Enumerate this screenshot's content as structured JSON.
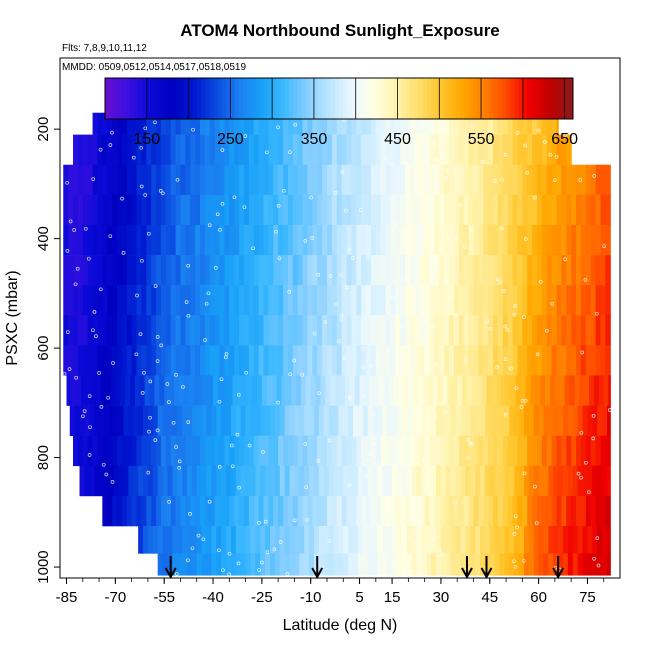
{
  "chart_data": {
    "type": "heatmap",
    "title": "ATOM4 Northbound Sunlight_Exposure",
    "subtitle_flights": "Flts: 7,8,9,10,11,12",
    "subtitle_dates": "MMDD: 0509,0512,0514,0517,0518,0519",
    "xlabel": "Latitude (deg N)",
    "ylabel": "PSXC (mbar)",
    "xlim": [
      -87,
      85
    ],
    "ylim": [
      1020,
      70
    ],
    "x_ticks": [
      -85,
      -70,
      -55,
      -40,
      -25,
      -10,
      5,
      15,
      30,
      45,
      60,
      75
    ],
    "y_ticks": [
      200,
      400,
      600,
      800,
      1000
    ],
    "colorbar": {
      "range": [
        100,
        660
      ],
      "ticks": [
        150,
        250,
        350,
        450,
        550,
        650
      ],
      "colors": [
        "#6a0dd1",
        "#3a10e0",
        "#0a0ad8",
        "#0000c0",
        "#0018d0",
        "#0a4ae0",
        "#1a7ef0",
        "#18a0f8",
        "#3cb8ff",
        "#80ccff",
        "#b8e4ff",
        "#e6f6ff",
        "#ffffe6",
        "#fff4b0",
        "#ffe070",
        "#ffc830",
        "#ffa800",
        "#ff8000",
        "#ff4a00",
        "#f00000",
        "#c00000",
        "#8a1a1a"
      ]
    },
    "arrow_latitudes": [
      -53,
      -8,
      38,
      44,
      66
    ],
    "pressure_bands": [
      {
        "p_top": 170,
        "p_bottom": 210,
        "lat_min": -77,
        "lat_max": 66
      },
      {
        "p_top": 210,
        "p_bottom": 265,
        "lat_min": -83,
        "lat_max": 70
      },
      {
        "p_top": 265,
        "p_bottom": 320,
        "lat_min": -86,
        "lat_max": 82
      },
      {
        "p_top": 320,
        "p_bottom": 375,
        "lat_min": -86,
        "lat_max": 82
      },
      {
        "p_top": 375,
        "p_bottom": 430,
        "lat_min": -86,
        "lat_max": 82
      },
      {
        "p_top": 430,
        "p_bottom": 485,
        "lat_min": -86,
        "lat_max": 82
      },
      {
        "p_top": 485,
        "p_bottom": 540,
        "lat_min": -86,
        "lat_max": 82
      },
      {
        "p_top": 540,
        "p_bottom": 595,
        "lat_min": -86,
        "lat_max": 82
      },
      {
        "p_top": 595,
        "p_bottom": 650,
        "lat_min": -86,
        "lat_max": 82
      },
      {
        "p_top": 650,
        "p_bottom": 705,
        "lat_min": -85,
        "lat_max": 82
      },
      {
        "p_top": 705,
        "p_bottom": 760,
        "lat_min": -84,
        "lat_max": 82
      },
      {
        "p_top": 760,
        "p_bottom": 815,
        "lat_min": -83,
        "lat_max": 82
      },
      {
        "p_top": 815,
        "p_bottom": 870,
        "lat_min": -81,
        "lat_max": 82
      },
      {
        "p_top": 870,
        "p_bottom": 925,
        "lat_min": -74,
        "lat_max": 82
      },
      {
        "p_top": 925,
        "p_bottom": 975,
        "lat_min": -63,
        "lat_max": 82
      },
      {
        "p_top": 975,
        "p_bottom": 1015,
        "lat_min": -57,
        "lat_max": 82
      }
    ],
    "exposure_profile": [
      {
        "lat": -86,
        "value": 150
      },
      {
        "lat": -80,
        "value": 145
      },
      {
        "lat": -72,
        "value": 175
      },
      {
        "lat": -64,
        "value": 210
      },
      {
        "lat": -55,
        "value": 245
      },
      {
        "lat": -45,
        "value": 265
      },
      {
        "lat": -35,
        "value": 285
      },
      {
        "lat": -25,
        "value": 310
      },
      {
        "lat": -15,
        "value": 335
      },
      {
        "lat": -5,
        "value": 360
      },
      {
        "lat": 5,
        "value": 385
      },
      {
        "lat": 15,
        "value": 405
      },
      {
        "lat": 25,
        "value": 425
      },
      {
        "lat": 35,
        "value": 445
      },
      {
        "lat": 45,
        "value": 470
      },
      {
        "lat": 52,
        "value": 495
      },
      {
        "lat": 58,
        "value": 520
      },
      {
        "lat": 64,
        "value": 545
      },
      {
        "lat": 70,
        "value": 560
      },
      {
        "lat": 78,
        "value": 580
      },
      {
        "lat": 82,
        "value": 590
      }
    ]
  }
}
